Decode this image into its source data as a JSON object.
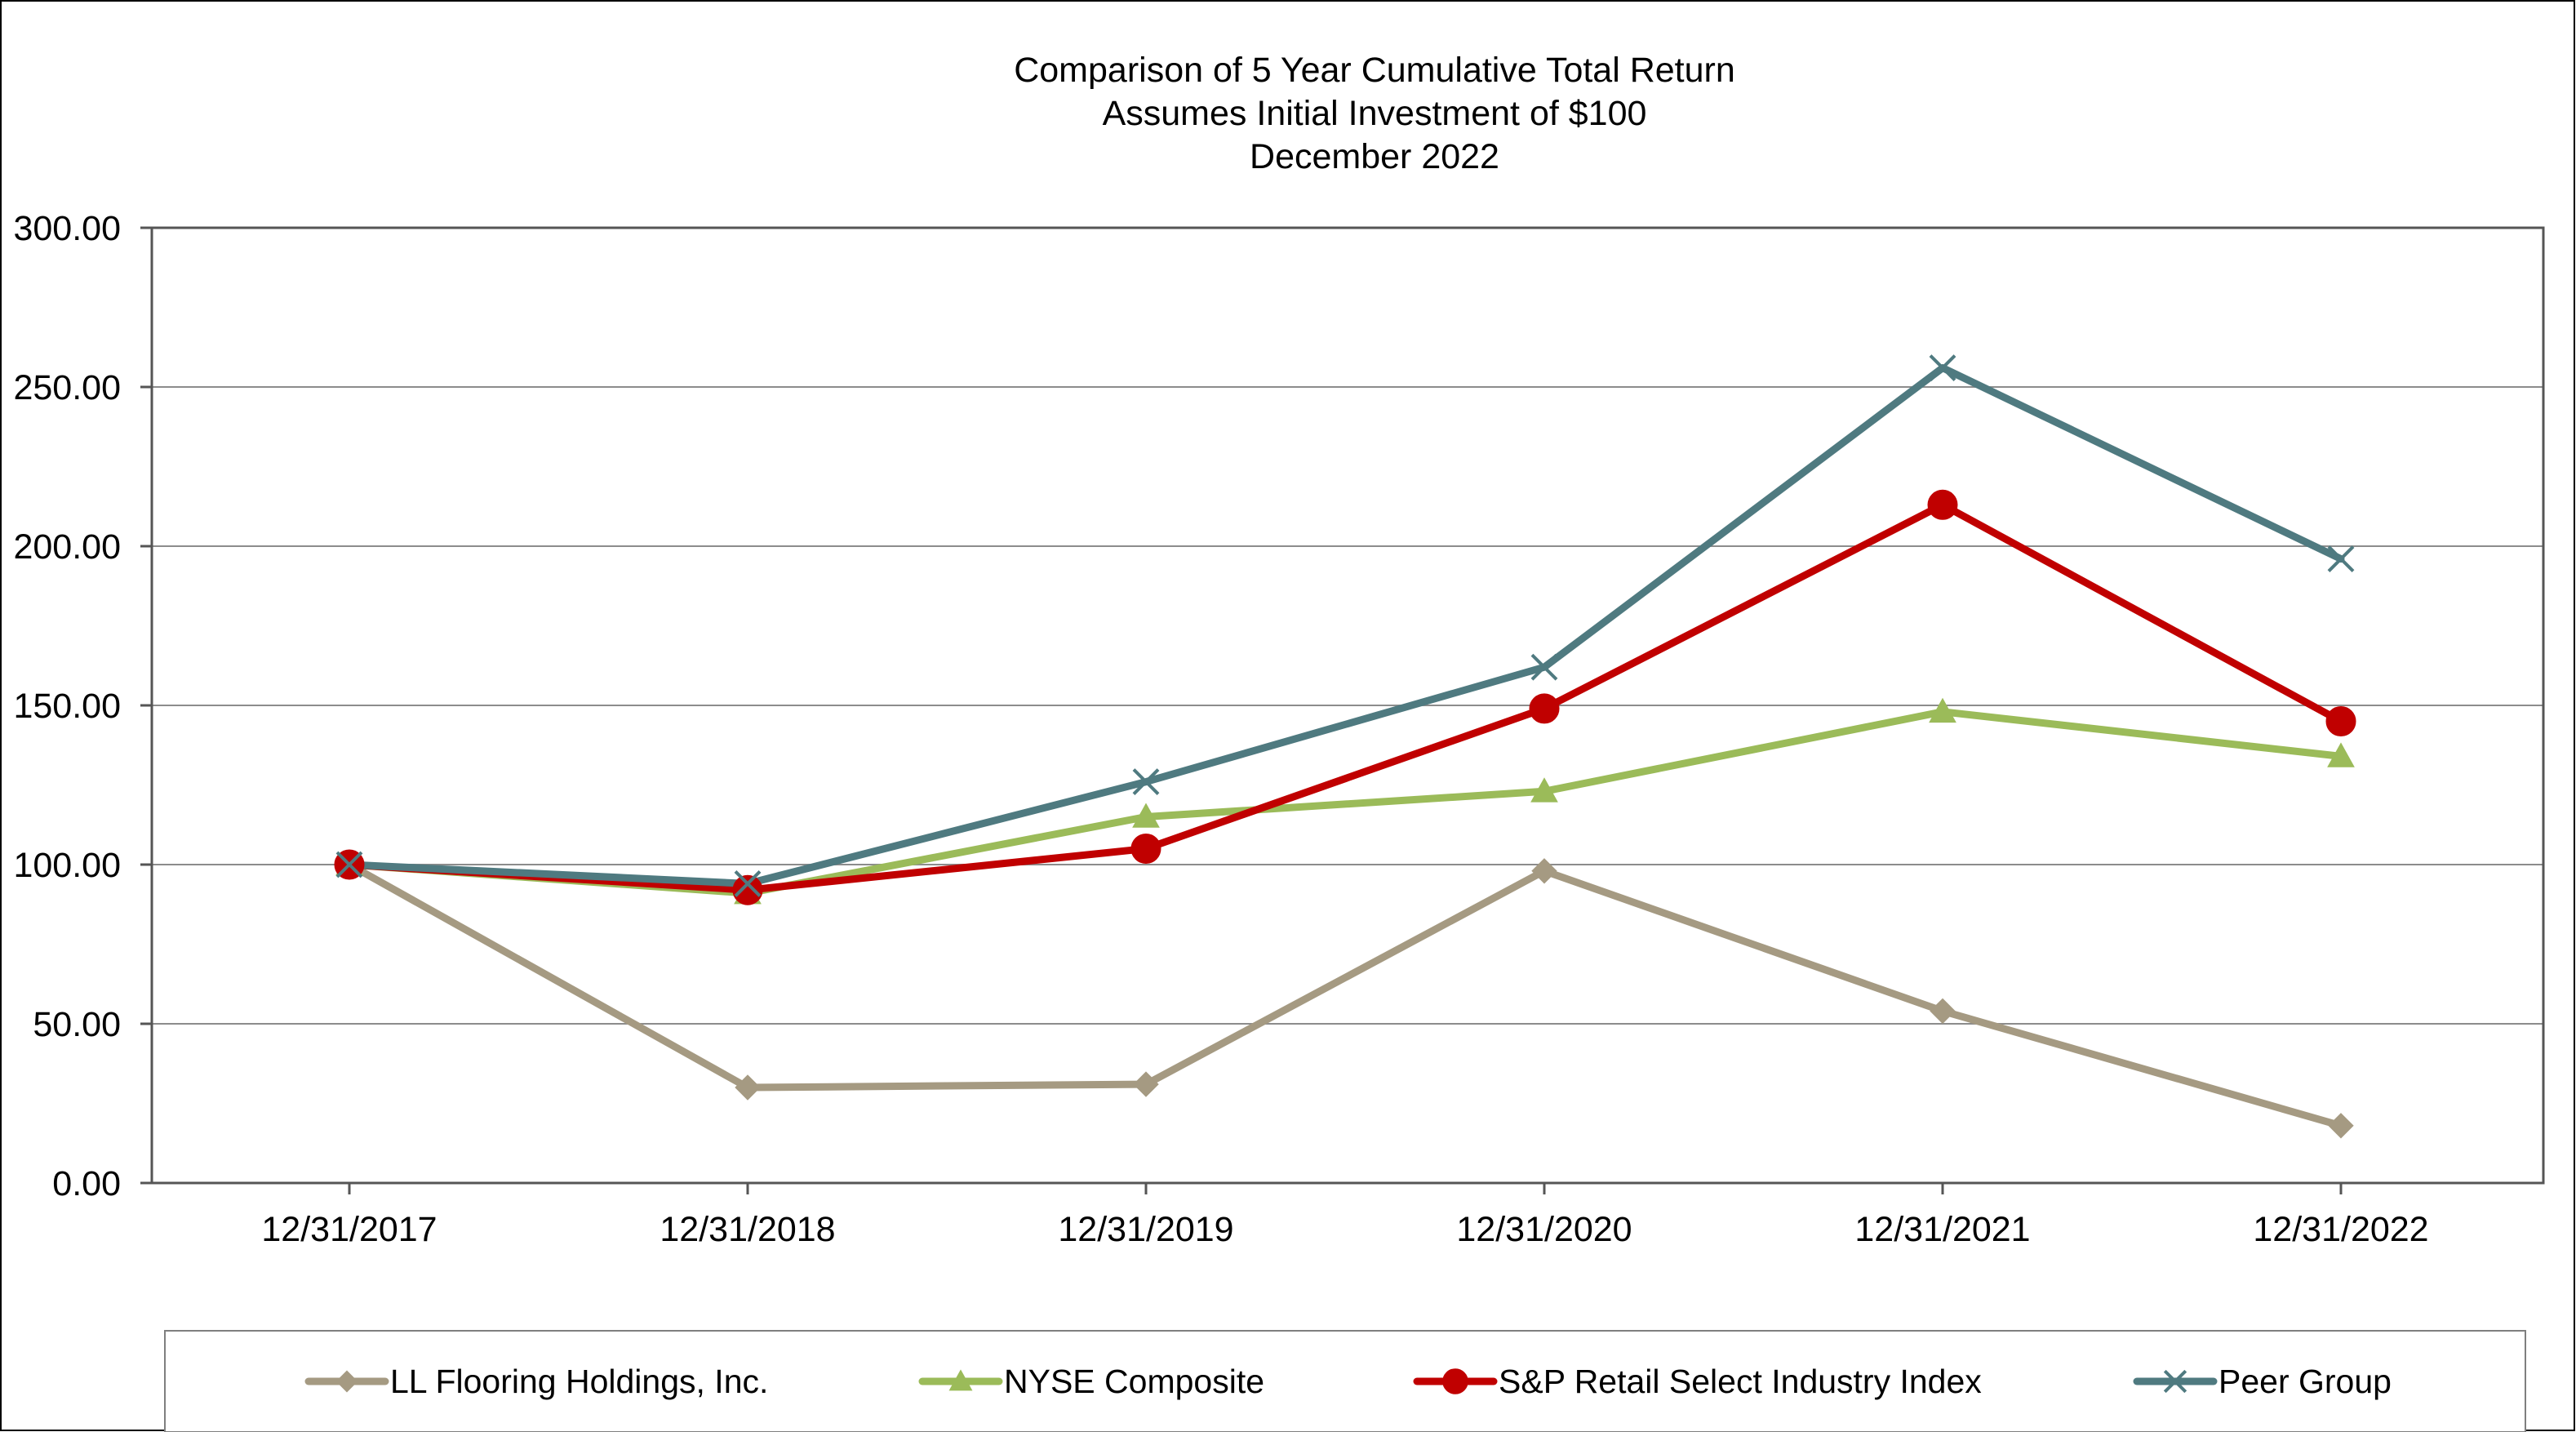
{
  "chart_data": {
    "type": "line",
    "title": [
      "Comparison of 5 Year Cumulative Total Return",
      "Assumes Initial Investment of $100",
      "December 2022"
    ],
    "xlabel": "",
    "ylabel": "",
    "categories": [
      "12/31/2017",
      "12/31/2018",
      "12/31/2019",
      "12/31/2020",
      "12/31/2021",
      "12/31/2022"
    ],
    "ylim": [
      0,
      300
    ],
    "yticks": [
      0,
      50,
      100,
      150,
      200,
      250,
      300
    ],
    "ytick_labels": [
      "0.00",
      "50.00",
      "100.00",
      "150.00",
      "200.00",
      "250.00",
      "300.00"
    ],
    "grid": true,
    "legend_position": "bottom",
    "series": [
      {
        "name": "LL Flooring Holdings, Inc.",
        "marker": "diamond",
        "color": "#A59A82",
        "values": [
          100,
          30,
          31,
          98,
          54,
          18
        ]
      },
      {
        "name": "NYSE Composite",
        "marker": "triangle",
        "color": "#9BBB59",
        "values": [
          100,
          91,
          115,
          123,
          148,
          134
        ]
      },
      {
        "name": "S&P Retail Select Industry Index",
        "marker": "circle",
        "color": "#C00000",
        "values": [
          100,
          92,
          105,
          149,
          213,
          145
        ]
      },
      {
        "name": "Peer Group",
        "marker": "x",
        "color": "#4F7A80",
        "values": [
          100,
          94,
          126,
          162,
          256,
          196
        ]
      }
    ]
  }
}
